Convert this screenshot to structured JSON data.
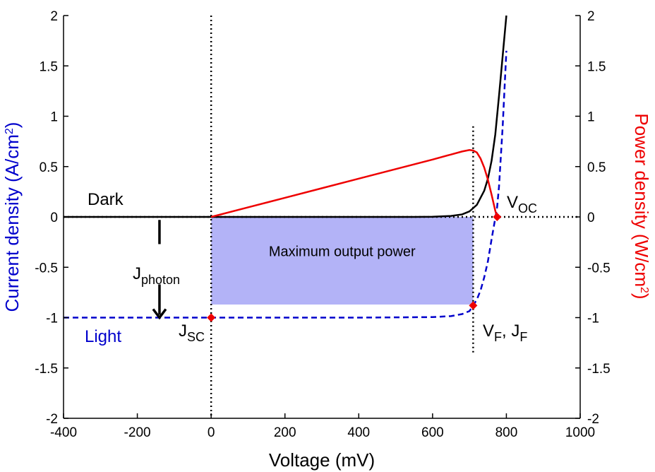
{
  "colors": {
    "dark": "#000000",
    "light": "#0000cc",
    "power": "#ee0000",
    "region": "#b3b3f7",
    "marker": "#ee0000"
  },
  "labels": {
    "dark": "Dark",
    "light": "Light",
    "jphoton_main": "J",
    "jphoton_sub": "photon",
    "jsc_main": "J",
    "jsc_sub": "SC",
    "voc_main": "V",
    "voc_sub": "OC",
    "vf_main": "V",
    "vf_sub": "F",
    "vf_sep": ", ",
    "jf_main": "J",
    "jf_sub": "F",
    "region": "Maximum output power"
  },
  "chart_data": {
    "type": "line",
    "xlabel": "Voltage (mV)",
    "ylabel_left": "Current density (A/cm",
    "ylabel_left_sup": "2",
    "ylabel_left_end": ")",
    "ylabel_right": "Power density (W/cm",
    "ylabel_right_sup": "2",
    "ylabel_right_end": ")",
    "xlim": [
      -400,
      1000
    ],
    "ylim": [
      -2,
      2
    ],
    "ylim_right": [
      -2,
      2
    ],
    "xticks": [
      "-400",
      "-200",
      "0",
      "200",
      "400",
      "600",
      "800",
      "1000"
    ],
    "yticks": [
      "-2",
      "-1.5",
      "-1",
      "-0.5",
      "0",
      "0.5",
      "1",
      "1.5",
      "2"
    ],
    "series": [
      {
        "name": "Dark",
        "style": "solid",
        "x": [
          -400,
          0,
          400,
          550,
          600,
          650,
          680,
          700,
          720,
          740,
          750,
          760,
          770,
          780,
          790,
          800
        ],
        "y": [
          0,
          0,
          0,
          0,
          0.002,
          0.01,
          0.025,
          0.055,
          0.12,
          0.26,
          0.38,
          0.56,
          0.82,
          1.2,
          1.6,
          2.0
        ]
      },
      {
        "name": "Light",
        "style": "dashed",
        "x": [
          -400,
          0,
          400,
          600,
          650,
          680,
          700,
          710,
          720,
          730,
          740,
          750,
          760,
          770,
          775,
          780,
          790,
          800
        ],
        "y": [
          -1,
          -1,
          -1,
          -0.995,
          -0.985,
          -0.965,
          -0.935,
          -0.88,
          -0.82,
          -0.73,
          -0.6,
          -0.44,
          -0.22,
          -0.01,
          0.1,
          0.3,
          0.9,
          1.65
        ]
      },
      {
        "name": "Power",
        "axis": "right",
        "style": "solid",
        "x": [
          0,
          100,
          200,
          300,
          400,
          500,
          600,
          650,
          680,
          700,
          710,
          720,
          730,
          740,
          750,
          760,
          770,
          775
        ],
        "y": [
          0,
          0.095,
          0.19,
          0.285,
          0.38,
          0.475,
          0.57,
          0.62,
          0.65,
          0.665,
          0.66,
          0.64,
          0.58,
          0.49,
          0.37,
          0.22,
          0.06,
          0
        ]
      }
    ],
    "points": [
      {
        "label": "JSC",
        "x": 0,
        "y": -1
      },
      {
        "label": "VF, JF",
        "x": 710,
        "y": -0.88
      },
      {
        "label": "VOC",
        "x": 775,
        "y": 0
      }
    ],
    "max_power_region": {
      "x": [
        0,
        710
      ],
      "y": [
        -0.87,
        0
      ]
    },
    "guide_lines": {
      "vertical_x": [
        0,
        710
      ],
      "horizontal_y": 0
    },
    "jphoton_arrow": {
      "x": -140,
      "y": [
        -0.03,
        -1.0
      ]
    },
    "grid": false
  }
}
